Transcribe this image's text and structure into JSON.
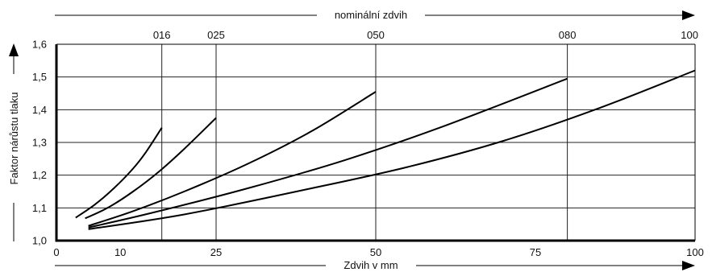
{
  "chart_data": {
    "type": "line",
    "title": "",
    "xlabel": "Zdvih v mm",
    "ylabel": "Faktor nárůstu tlaku",
    "top_axis_label": "nominální zdvih",
    "xlim": [
      0,
      100
    ],
    "ylim": [
      1.0,
      1.6
    ],
    "x_ticks": [
      "0",
      "10",
      "25",
      "50",
      "75",
      "100"
    ],
    "x_tick_values": [
      0,
      10,
      25,
      50,
      75,
      100
    ],
    "top_ticks": [
      "016",
      "025",
      "050",
      "080",
      "100"
    ],
    "top_tick_values": [
      16.5,
      25,
      50,
      80,
      100
    ],
    "y_ticks": [
      "1,0",
      "1,1",
      "1,2",
      "1,3",
      "1,4",
      "1,5",
      "1,6"
    ],
    "y_tick_values": [
      1.0,
      1.1,
      1.2,
      1.3,
      1.4,
      1.5,
      1.6
    ],
    "grid": true,
    "series": [
      {
        "x": [
          3,
          6,
          9,
          12,
          14,
          16.5
        ],
        "y": [
          1.07,
          1.11,
          1.16,
          1.22,
          1.27,
          1.345
        ]
      },
      {
        "x": [
          4.5,
          8,
          12,
          16,
          20,
          25
        ],
        "y": [
          1.068,
          1.1,
          1.15,
          1.21,
          1.28,
          1.375
        ]
      },
      {
        "x": [
          5,
          12,
          20,
          30,
          40,
          50
        ],
        "y": [
          1.045,
          1.09,
          1.15,
          1.235,
          1.335,
          1.455
        ]
      },
      {
        "x": [
          5,
          15,
          30,
          45,
          60,
          80
        ],
        "y": [
          1.04,
          1.085,
          1.16,
          1.245,
          1.345,
          1.495
        ]
      },
      {
        "x": [
          5,
          20,
          40,
          55,
          70,
          85,
          100
        ],
        "y": [
          1.035,
          1.08,
          1.16,
          1.225,
          1.305,
          1.405,
          1.52
        ]
      }
    ]
  }
}
